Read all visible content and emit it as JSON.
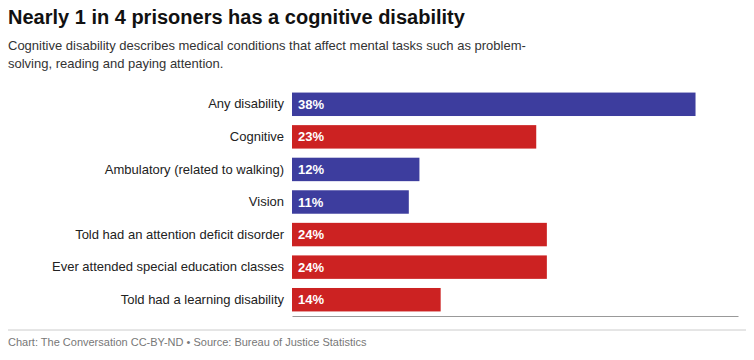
{
  "chart_data": {
    "type": "bar",
    "orientation": "horizontal",
    "title": "Nearly 1 in 4 prisoners has a cognitive disability",
    "subtitle": "Cognitive disability describes medical conditions that affect mental tasks such as problem-\nsolving, reading and paying attention.",
    "annotations": [
      "Chart: The Conversation CC-BY-ND • Source: Bureau of Justice Statistics"
    ],
    "categories": [
      "Any disability",
      "Cognitive",
      "Ambulatory (related to walking)",
      "Vision",
      "Told had an attention deficit disorder",
      "Ever attended special education classes",
      "Told had a learning disability"
    ],
    "values": [
      38,
      23,
      12,
      11,
      24,
      24,
      14
    ],
    "value_labels": [
      "38%",
      "23%",
      "12%",
      "11%",
      "24%",
      "24%",
      "14%"
    ],
    "colors": [
      "#3d3d9e",
      "#cc2222",
      "#3d3d9e",
      "#3d3d9e",
      "#cc2222",
      "#cc2222",
      "#cc2222"
    ],
    "xlim": [
      0,
      42
    ],
    "data_labels": true,
    "tick_labels": "y",
    "grid": false
  }
}
